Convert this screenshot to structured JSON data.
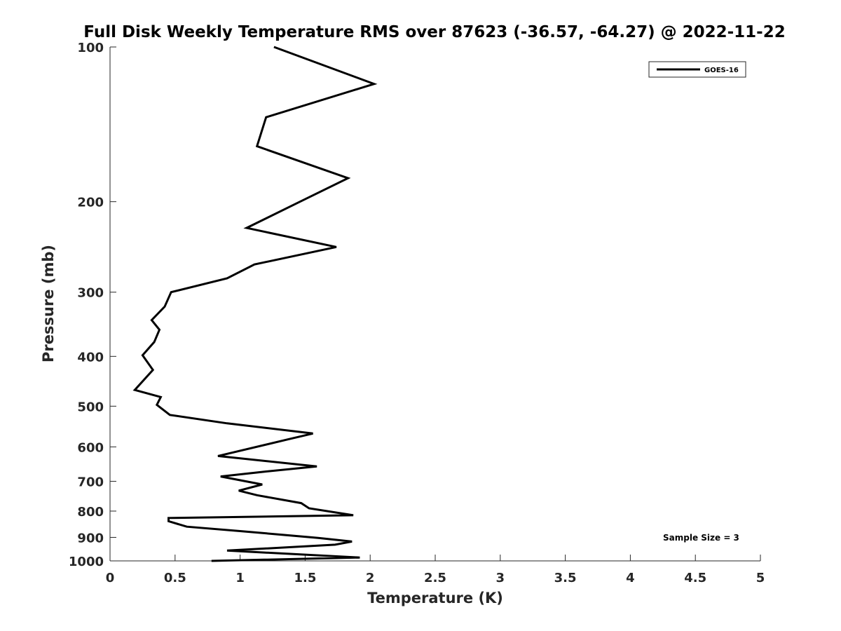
{
  "chart_data": {
    "type": "line",
    "title": "Full Disk Weekly Temperature RMS over 87623 (-36.57, -64.27) @ 2022-11-22",
    "xlabel": "Temperature (K)",
    "ylabel": "Pressure (mb)",
    "xlim": [
      0,
      5
    ],
    "ylim": [
      100,
      1000
    ],
    "y_scale": "log",
    "y_reversed": true,
    "grid": false,
    "xticks": [
      0,
      0.5,
      1,
      1.5,
      2,
      2.5,
      3,
      3.5,
      4,
      4.5,
      5
    ],
    "xtick_labels": [
      "0",
      "0.5",
      "1",
      "1.5",
      "2",
      "2.5",
      "3",
      "3.5",
      "4",
      "4.5",
      "5"
    ],
    "yticks": [
      100,
      200,
      300,
      400,
      500,
      600,
      700,
      800,
      900,
      1000
    ],
    "ytick_labels": [
      "100",
      "200",
      "300",
      "400",
      "500",
      "600",
      "700",
      "800",
      "900",
      "1000"
    ],
    "legend": {
      "position": "top-right",
      "entries": [
        "GOES-16"
      ]
    },
    "annotation": "Sample Size = 3",
    "series": [
      {
        "name": "GOES-16",
        "color": "#000000",
        "points": [
          [
            1.26,
            100
          ],
          [
            2.03,
            118
          ],
          [
            1.2,
            137
          ],
          [
            1.13,
            156
          ],
          [
            1.83,
            180
          ],
          [
            1.46,
            200
          ],
          [
            1.05,
            225
          ],
          [
            1.74,
            245
          ],
          [
            1.11,
            265
          ],
          [
            0.9,
            282
          ],
          [
            0.47,
            300
          ],
          [
            0.42,
            320
          ],
          [
            0.32,
            340
          ],
          [
            0.38,
            355
          ],
          [
            0.34,
            375
          ],
          [
            0.25,
            398
          ],
          [
            0.33,
            425
          ],
          [
            0.19,
            465
          ],
          [
            0.39,
            480
          ],
          [
            0.36,
            497
          ],
          [
            0.46,
            520
          ],
          [
            0.9,
            540
          ],
          [
            1.56,
            565
          ],
          [
            1.37,
            580
          ],
          [
            0.83,
            625
          ],
          [
            1.59,
            655
          ],
          [
            1.2,
            670
          ],
          [
            0.85,
            685
          ],
          [
            1.17,
            710
          ],
          [
            0.99,
            730
          ],
          [
            1.13,
            745
          ],
          [
            1.47,
            772
          ],
          [
            1.53,
            790
          ],
          [
            1.87,
            815
          ],
          [
            0.9,
            822
          ],
          [
            0.45,
            825
          ],
          [
            0.45,
            837
          ],
          [
            0.59,
            858
          ],
          [
            1.0,
            875
          ],
          [
            1.6,
            902
          ],
          [
            1.86,
            917
          ],
          [
            1.73,
            930
          ],
          [
            0.9,
            955
          ],
          [
            1.92,
            985
          ],
          [
            0.78,
            1000
          ]
        ]
      }
    ]
  }
}
